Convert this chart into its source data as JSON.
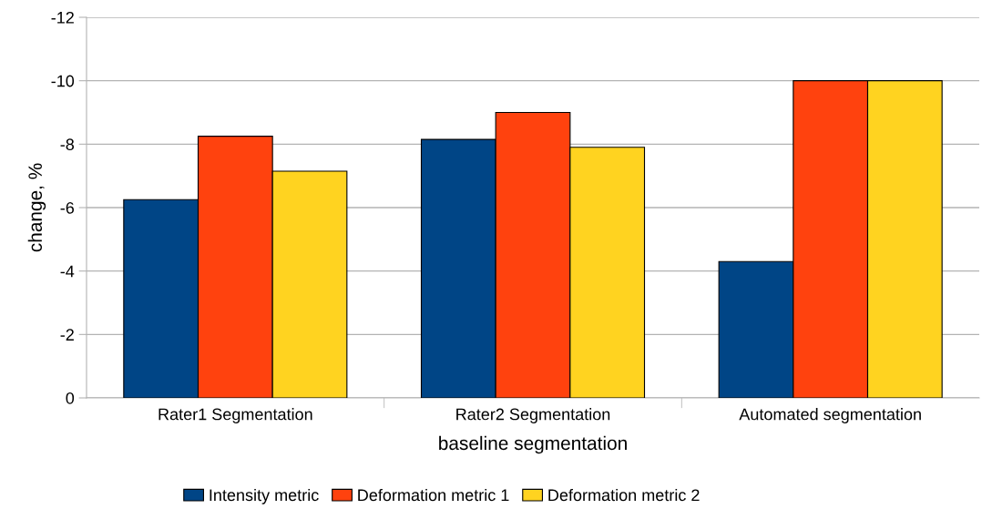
{
  "chart_data": {
    "type": "bar",
    "xlabel": "baseline segmentation",
    "ylabel": "change, %",
    "categories": [
      "Rater1 Segmentation",
      "Rater2 Segmentation",
      "Automated segmentation"
    ],
    "series": [
      {
        "name": "Intensity metric",
        "color": "#004586",
        "values": [
          -6.25,
          -8.15,
          -4.3
        ]
      },
      {
        "name": "Deformation metric 1",
        "color": "#ff420e",
        "values": [
          -8.25,
          -9.0,
          -10.0
        ]
      },
      {
        "name": "Deformation metric 2",
        "color": "#ffd320",
        "values": [
          -7.15,
          -7.9,
          -10.0
        ]
      }
    ],
    "ylim": [
      0,
      -12
    ],
    "yticks": [
      0,
      -2,
      -4,
      -6,
      -8,
      -10,
      -12
    ],
    "grid": "y",
    "legend": "bottom"
  }
}
